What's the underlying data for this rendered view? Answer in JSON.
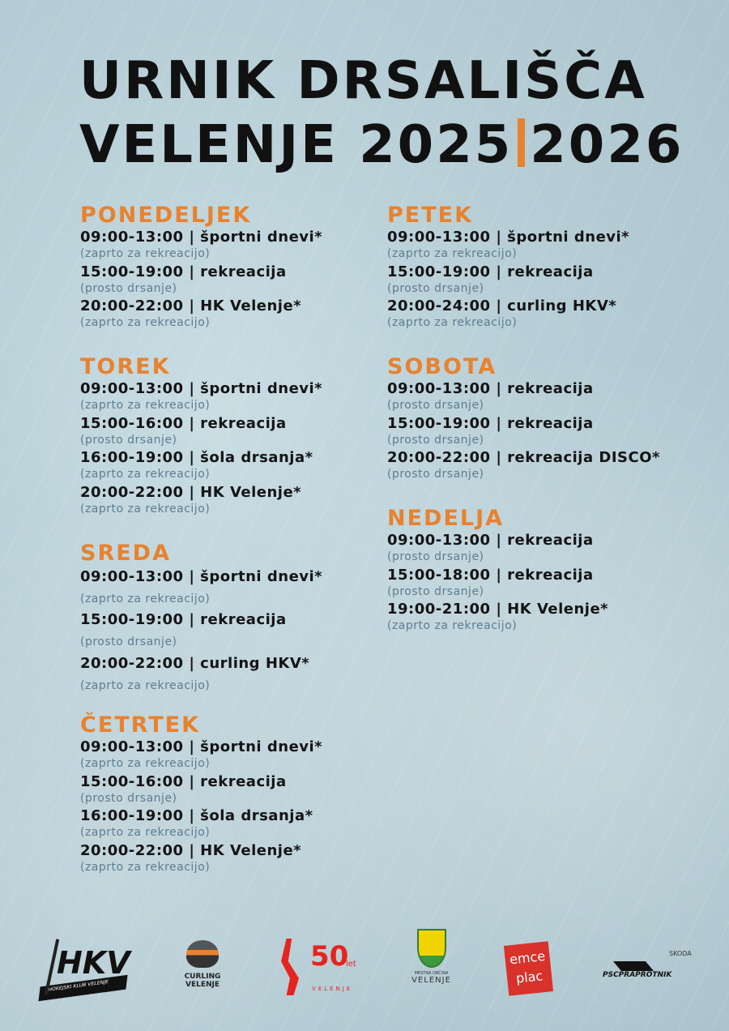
{
  "title": {
    "line1": "URNIK DRSALIŠČA",
    "line2a": "VELENJE 2025",
    "line2b": "2026"
  },
  "days": [
    {
      "name": "PONEDELJEK",
      "entries": [
        {
          "line": "09:00-13:00 | športni dnevi*",
          "note": "(zaprto za rekreacijo)"
        },
        {
          "line": "15:00-19:00 | rekreacija",
          "note": "(prosto drsanje)"
        },
        {
          "line": "20:00-22:00 | HK Velenje*",
          "note": "(zaprto za rekreacijo)"
        }
      ]
    },
    {
      "name": "TOREK",
      "entries": [
        {
          "line": "09:00-13:00 | športni dnevi*",
          "note": "(zaprto za rekreacijo)"
        },
        {
          "line": "15:00-16:00 | rekreacija",
          "note": "(prosto drsanje)"
        },
        {
          "line": "16:00-19:00 | šola drsanja*",
          "note": "(zaprto za rekreacijo)"
        },
        {
          "line": "20:00-22:00 | HK Velenje*",
          "note": "(zaprto za rekreacijo)"
        }
      ]
    },
    {
      "name": "SREDA",
      "entries": [
        {
          "line": "09:00-13:00 | športni dnevi*",
          "note": "(zaprto za rekreacijo)"
        },
        {
          "line": "15:00-19:00 | rekreacija",
          "note": "(prosto drsanje)"
        },
        {
          "line": "20:00-22:00 | curling HKV*",
          "note": "(zaprto za rekreacijo)"
        }
      ]
    },
    {
      "name": "ČETRTEK",
      "entries": [
        {
          "line": "09:00-13:00 | športni dnevi*",
          "note": "(zaprto za rekreacijo)"
        },
        {
          "line": "15:00-16:00 | rekreacija",
          "note": "(prosto drsanje)"
        },
        {
          "line": "16:00-19:00 | šola drsanja*",
          "note": "(zaprto za rekreacijo)"
        },
        {
          "line": "20:00-22:00 | HK Velenje*",
          "note": "(zaprto za rekreacijo)"
        }
      ]
    },
    {
      "name": "PETEK",
      "entries": [
        {
          "line": "09:00-13:00 | športni dnevi*",
          "note": "(zaprto za rekreacijo)"
        },
        {
          "line": "15:00-19:00 | rekreacija",
          "note": "(prosto drsanje)"
        },
        {
          "line": "20:00-24:00 | curling HKV*",
          "note": "(zaprto za rekreacijo)"
        }
      ]
    },
    {
      "name": "SOBOTA",
      "entries": [
        {
          "line": "09:00-13:00 | rekreacija",
          "note": "(prosto drsanje)"
        },
        {
          "line": "15:00-19:00 | rekreacija",
          "note": "(prosto drsanje)"
        },
        {
          "line": "20:00-22:00 | rekreacija DISCO*",
          "note": "(prosto drsanje)"
        }
      ]
    },
    {
      "name": "NEDELJA",
      "entries": [
        {
          "line": "09:00-13:00 | rekreacija",
          "note": "(prosto drsanje)"
        },
        {
          "line": "15:00-18:00 | rekreacija",
          "note": "(prosto drsanje)"
        },
        {
          "line": "19:00-21:00 | HK Velenje*",
          "note": "(zaprto za rekreacijo)"
        }
      ]
    }
  ],
  "logos": {
    "hkv": {
      "main": "HKV",
      "sub": "HOKEJSKI KLUB VELENJE"
    },
    "curling": {
      "main": "CURLING",
      "sub": "VELENJE"
    },
    "fifty": {
      "main": "50",
      "sup": "let",
      "sub": "VELENJE"
    },
    "mov": {
      "sub1": "MESTNA OBČINA",
      "sub2": "VELENJE"
    },
    "emce": {
      "l1": "emce",
      "l2": "plac"
    },
    "psc": {
      "top": "SKODA",
      "main": "PSCPRAPROTNIK"
    }
  },
  "colors": {
    "accent": "#e8822f",
    "note": "#5d7d90",
    "text": "#141414"
  }
}
